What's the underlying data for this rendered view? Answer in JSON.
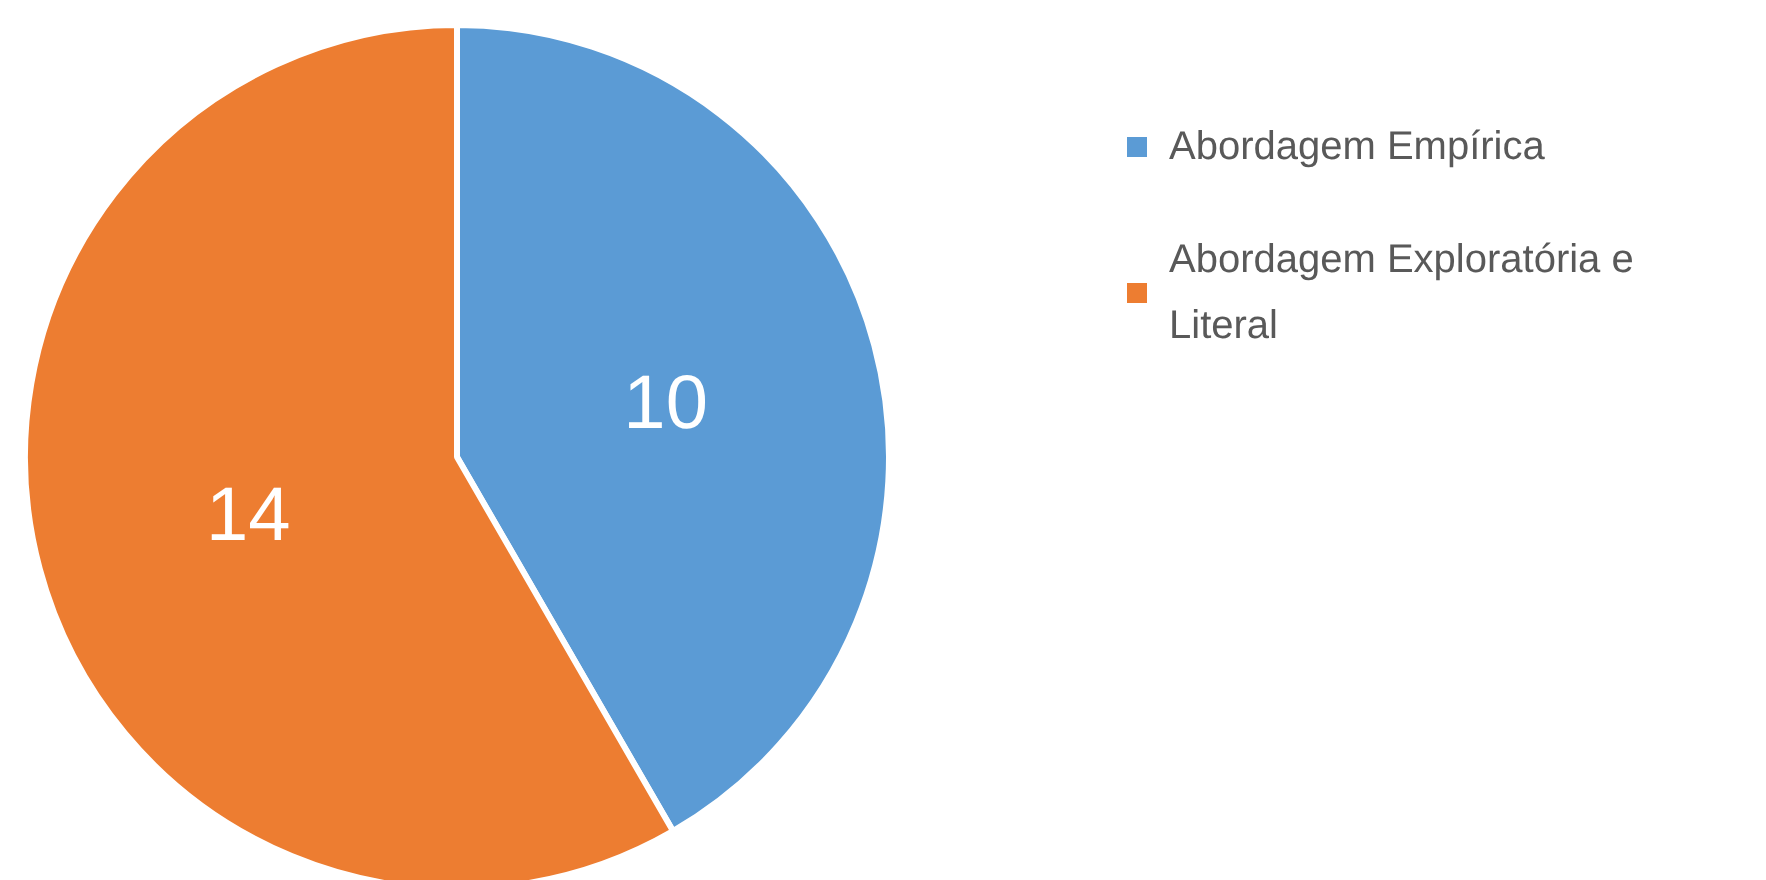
{
  "chart_data": {
    "type": "pie",
    "categories": [
      "Abordagem Empírica",
      "Abordagem Exploratória e Literal"
    ],
    "values": [
      10,
      14
    ],
    "colors": [
      "#5b9bd5",
      "#ed7d31"
    ],
    "data_labels": true,
    "legend": "right"
  }
}
